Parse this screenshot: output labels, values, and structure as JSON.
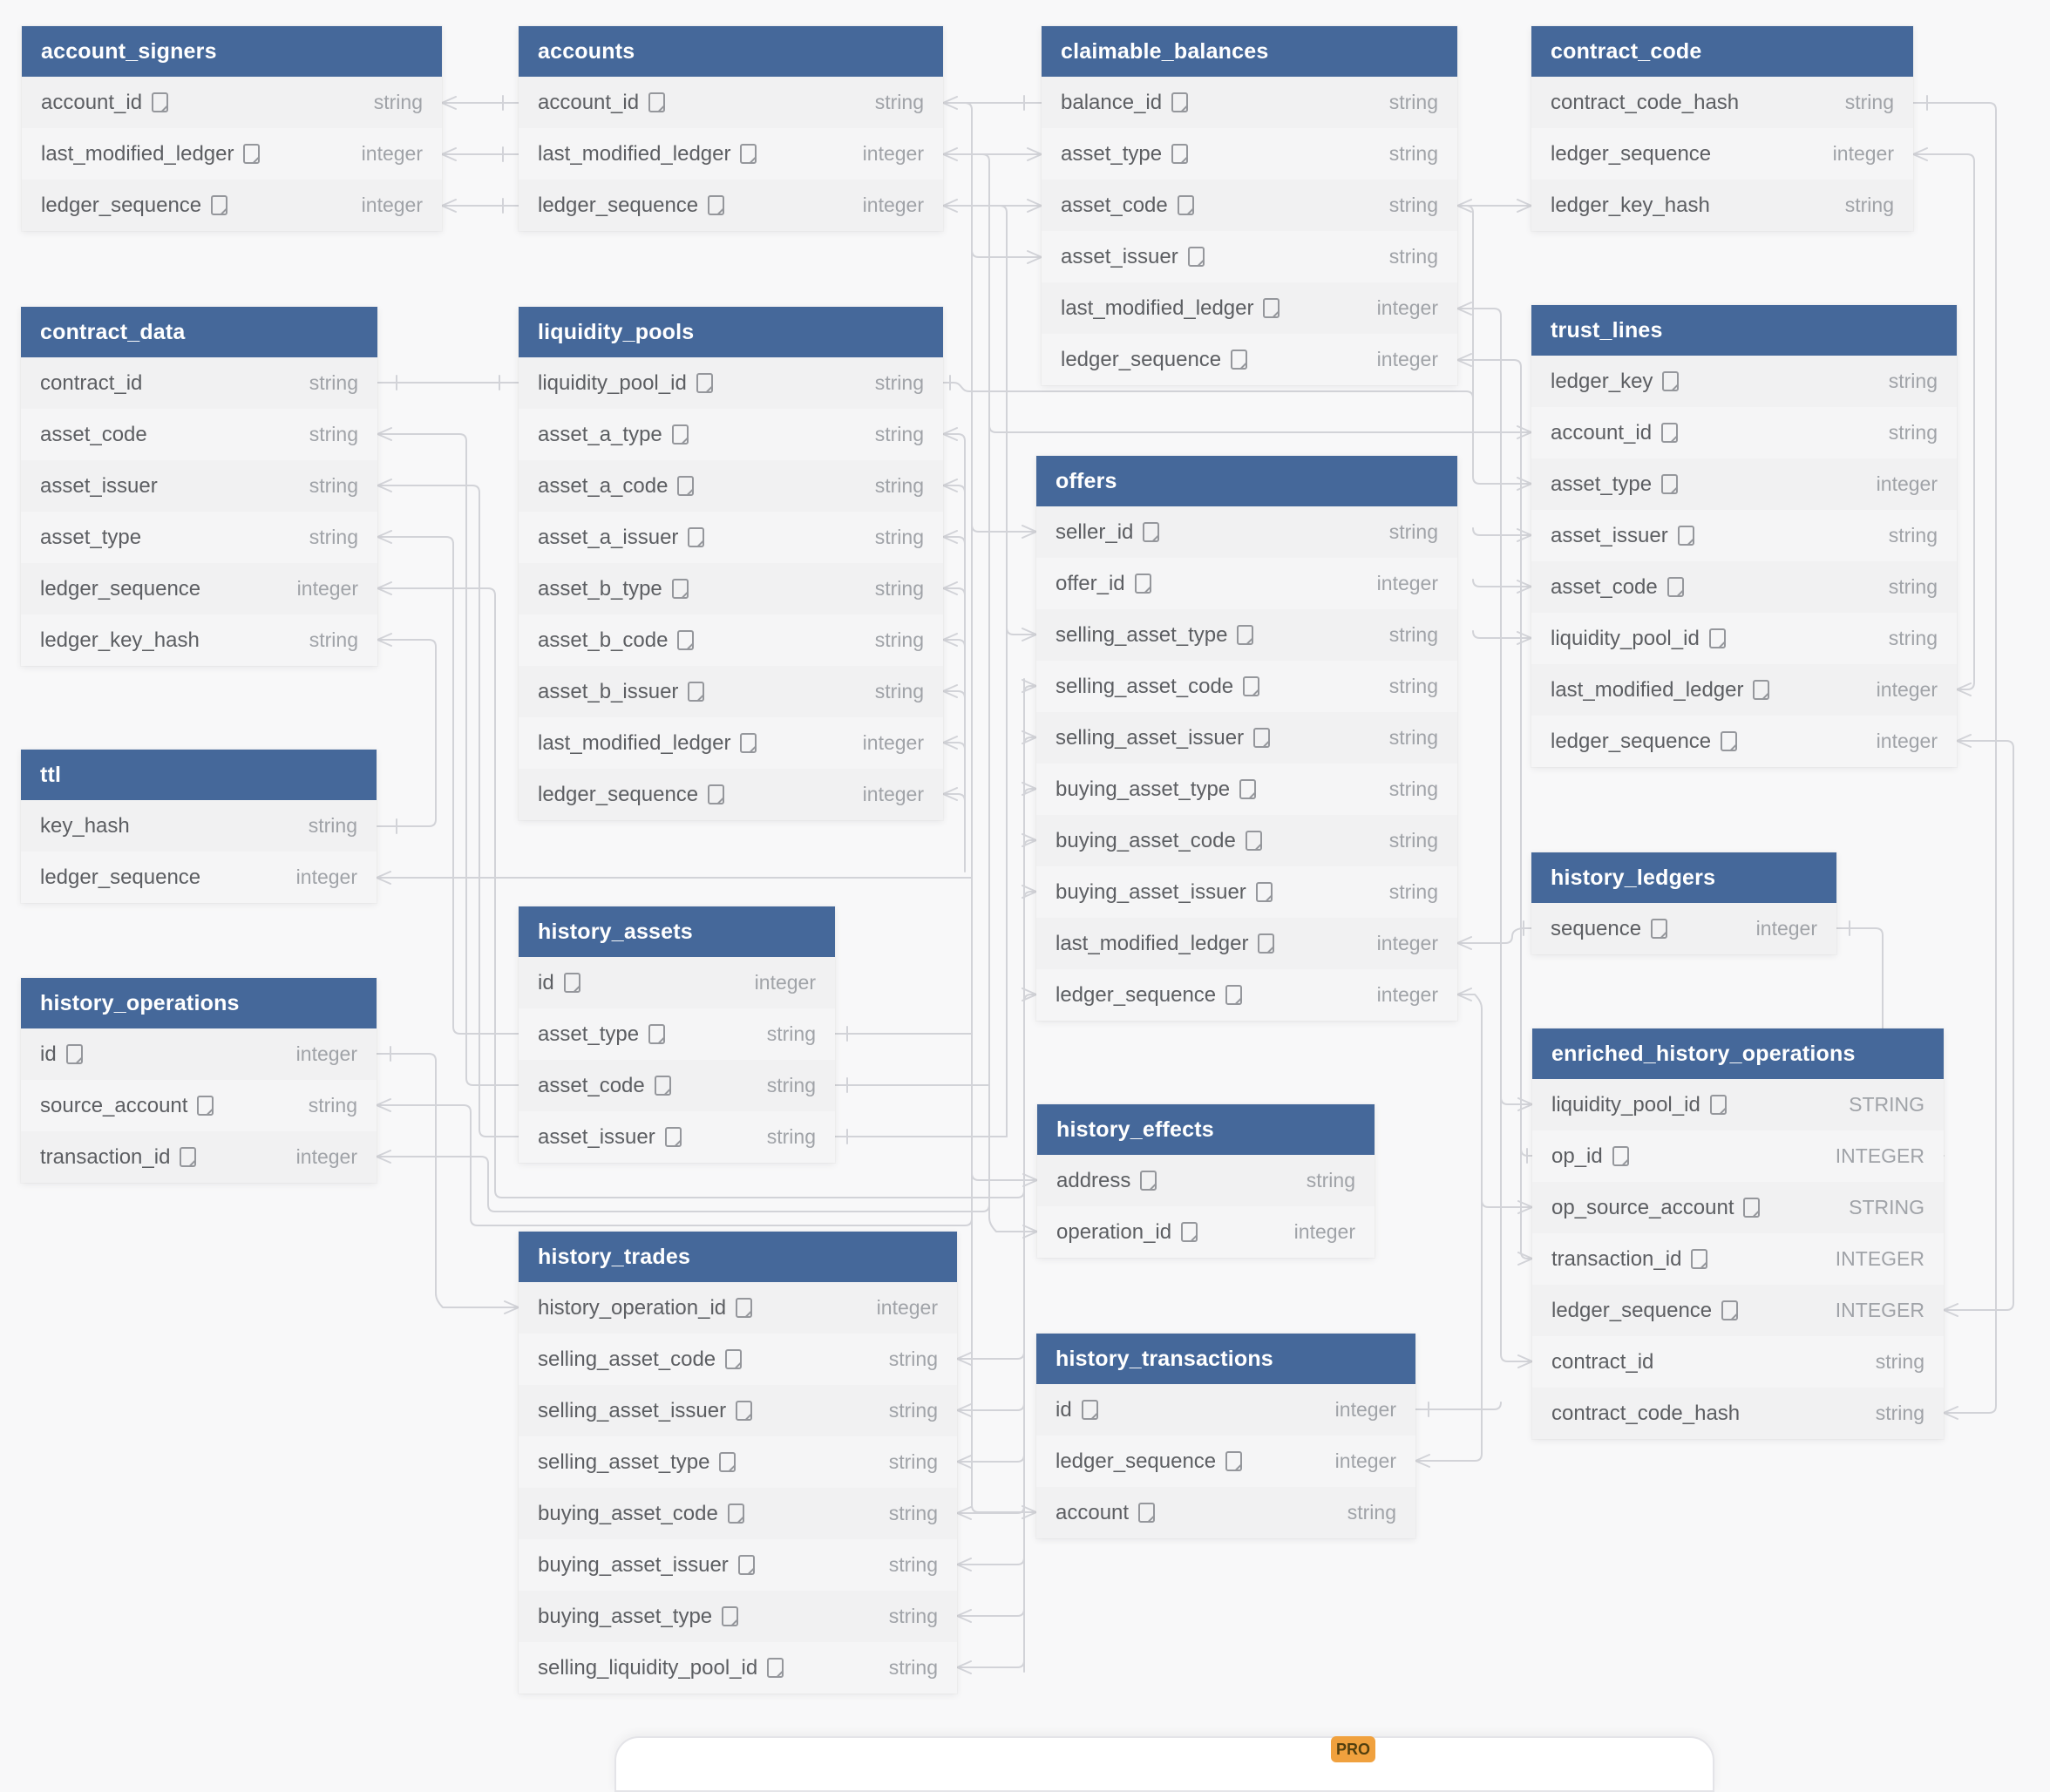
{
  "badge": {
    "label": "PRO"
  },
  "colors": {
    "header_bg": "#45689a",
    "header_text": "#ffffff",
    "row_bg": "#f1f1f2",
    "canvas_bg": "#f8f8f9",
    "line": "#d2d3d8",
    "column_text": "#5c5e62",
    "type_text": "#a0a3a8",
    "badge_bg": "#f0a13e"
  },
  "tables": {
    "account_signers": {
      "name": "account_signers",
      "columns": [
        {
          "name": "account_id",
          "type": "string",
          "note": true
        },
        {
          "name": "last_modified_ledger",
          "type": "integer",
          "note": true
        },
        {
          "name": "ledger_sequence",
          "type": "integer",
          "note": true
        }
      ]
    },
    "accounts": {
      "name": "accounts",
      "columns": [
        {
          "name": "account_id",
          "type": "string",
          "note": true
        },
        {
          "name": "last_modified_ledger",
          "type": "integer",
          "note": true
        },
        {
          "name": "ledger_sequence",
          "type": "integer",
          "note": true
        }
      ]
    },
    "claimable_balances": {
      "name": "claimable_balances",
      "columns": [
        {
          "name": "balance_id",
          "type": "string",
          "note": true
        },
        {
          "name": "asset_type",
          "type": "string",
          "note": true
        },
        {
          "name": "asset_code",
          "type": "string",
          "note": true
        },
        {
          "name": "asset_issuer",
          "type": "string",
          "note": true
        },
        {
          "name": "last_modified_ledger",
          "type": "integer",
          "note": true
        },
        {
          "name": "ledger_sequence",
          "type": "integer",
          "note": true
        }
      ]
    },
    "contract_code": {
      "name": "contract_code",
      "columns": [
        {
          "name": "contract_code_hash",
          "type": "string",
          "note": false
        },
        {
          "name": "ledger_sequence",
          "type": "integer",
          "note": false
        },
        {
          "name": "ledger_key_hash",
          "type": "string",
          "note": false
        }
      ]
    },
    "contract_data": {
      "name": "contract_data",
      "columns": [
        {
          "name": "contract_id",
          "type": "string",
          "note": false
        },
        {
          "name": "asset_code",
          "type": "string",
          "note": false
        },
        {
          "name": "asset_issuer",
          "type": "string",
          "note": false
        },
        {
          "name": "asset_type",
          "type": "string",
          "note": false
        },
        {
          "name": "ledger_sequence",
          "type": "integer",
          "note": false
        },
        {
          "name": "ledger_key_hash",
          "type": "string",
          "note": false
        }
      ]
    },
    "liquidity_pools": {
      "name": "liquidity_pools",
      "columns": [
        {
          "name": "liquidity_pool_id",
          "type": "string",
          "note": true
        },
        {
          "name": "asset_a_type",
          "type": "string",
          "note": true
        },
        {
          "name": "asset_a_code",
          "type": "string",
          "note": true
        },
        {
          "name": "asset_a_issuer",
          "type": "string",
          "note": true
        },
        {
          "name": "asset_b_type",
          "type": "string",
          "note": true
        },
        {
          "name": "asset_b_code",
          "type": "string",
          "note": true
        },
        {
          "name": "asset_b_issuer",
          "type": "string",
          "note": true
        },
        {
          "name": "last_modified_ledger",
          "type": "integer",
          "note": true
        },
        {
          "name": "ledger_sequence",
          "type": "integer",
          "note": true
        }
      ]
    },
    "offers": {
      "name": "offers",
      "columns": [
        {
          "name": "seller_id",
          "type": "string",
          "note": true
        },
        {
          "name": "offer_id",
          "type": "integer",
          "note": true
        },
        {
          "name": "selling_asset_type",
          "type": "string",
          "note": true
        },
        {
          "name": "selling_asset_code",
          "type": "string",
          "note": true
        },
        {
          "name": "selling_asset_issuer",
          "type": "string",
          "note": true
        },
        {
          "name": "buying_asset_type",
          "type": "string",
          "note": true
        },
        {
          "name": "buying_asset_code",
          "type": "string",
          "note": true
        },
        {
          "name": "buying_asset_issuer",
          "type": "string",
          "note": true
        },
        {
          "name": "last_modified_ledger",
          "type": "integer",
          "note": true
        },
        {
          "name": "ledger_sequence",
          "type": "integer",
          "note": true
        }
      ]
    },
    "trust_lines": {
      "name": "trust_lines",
      "columns": [
        {
          "name": "ledger_key",
          "type": "string",
          "note": true
        },
        {
          "name": "account_id",
          "type": "string",
          "note": true
        },
        {
          "name": "asset_type",
          "type": "integer",
          "note": true
        },
        {
          "name": "asset_issuer",
          "type": "string",
          "note": true
        },
        {
          "name": "asset_code",
          "type": "string",
          "note": true
        },
        {
          "name": "liquidity_pool_id",
          "type": "string",
          "note": true
        },
        {
          "name": "last_modified_ledger",
          "type": "integer",
          "note": true
        },
        {
          "name": "ledger_sequence",
          "type": "integer",
          "note": true
        }
      ]
    },
    "ttl": {
      "name": "ttl",
      "columns": [
        {
          "name": "key_hash",
          "type": "string",
          "note": false
        },
        {
          "name": "ledger_sequence",
          "type": "integer",
          "note": false
        }
      ]
    },
    "history_operations": {
      "name": "history_operations",
      "columns": [
        {
          "name": "id",
          "type": "integer",
          "note": true
        },
        {
          "name": "source_account",
          "type": "string",
          "note": true
        },
        {
          "name": "transaction_id",
          "type": "integer",
          "note": true
        }
      ]
    },
    "history_assets": {
      "name": "history_assets",
      "columns": [
        {
          "name": "id",
          "type": "integer",
          "note": true
        },
        {
          "name": "asset_type",
          "type": "string",
          "note": true
        },
        {
          "name": "asset_code",
          "type": "string",
          "note": true
        },
        {
          "name": "asset_issuer",
          "type": "string",
          "note": true
        }
      ]
    },
    "history_ledgers": {
      "name": "history_ledgers",
      "columns": [
        {
          "name": "sequence",
          "type": "integer",
          "note": true
        }
      ]
    },
    "history_effects": {
      "name": "history_effects",
      "columns": [
        {
          "name": "address",
          "type": "string",
          "note": true
        },
        {
          "name": "operation_id",
          "type": "integer",
          "note": true
        }
      ]
    },
    "enriched_history_operations": {
      "name": "enriched_history_operations",
      "columns": [
        {
          "name": "liquidity_pool_id",
          "type": "STRING",
          "note": true
        },
        {
          "name": "op_id",
          "type": "INTEGER",
          "note": true
        },
        {
          "name": "op_source_account",
          "type": "STRING",
          "note": true
        },
        {
          "name": "transaction_id",
          "type": "INTEGER",
          "note": true
        },
        {
          "name": "ledger_sequence",
          "type": "INTEGER",
          "note": true
        },
        {
          "name": "contract_id",
          "type": "string",
          "note": false
        },
        {
          "name": "contract_code_hash",
          "type": "string",
          "note": false
        }
      ]
    },
    "history_trades": {
      "name": "history_trades",
      "columns": [
        {
          "name": "history_operation_id",
          "type": "integer",
          "note": true
        },
        {
          "name": "selling_asset_code",
          "type": "string",
          "note": true
        },
        {
          "name": "selling_asset_issuer",
          "type": "string",
          "note": true
        },
        {
          "name": "selling_asset_type",
          "type": "string",
          "note": true
        },
        {
          "name": "buying_asset_code",
          "type": "string",
          "note": true
        },
        {
          "name": "buying_asset_issuer",
          "type": "string",
          "note": true
        },
        {
          "name": "buying_asset_type",
          "type": "string",
          "note": true
        },
        {
          "name": "selling_liquidity_pool_id",
          "type": "string",
          "note": true
        }
      ]
    },
    "history_transactions": {
      "name": "history_transactions",
      "columns": [
        {
          "name": "id",
          "type": "integer",
          "note": true
        },
        {
          "name": "ledger_sequence",
          "type": "integer",
          "note": true
        },
        {
          "name": "account",
          "type": "string",
          "note": true
        }
      ]
    }
  }
}
